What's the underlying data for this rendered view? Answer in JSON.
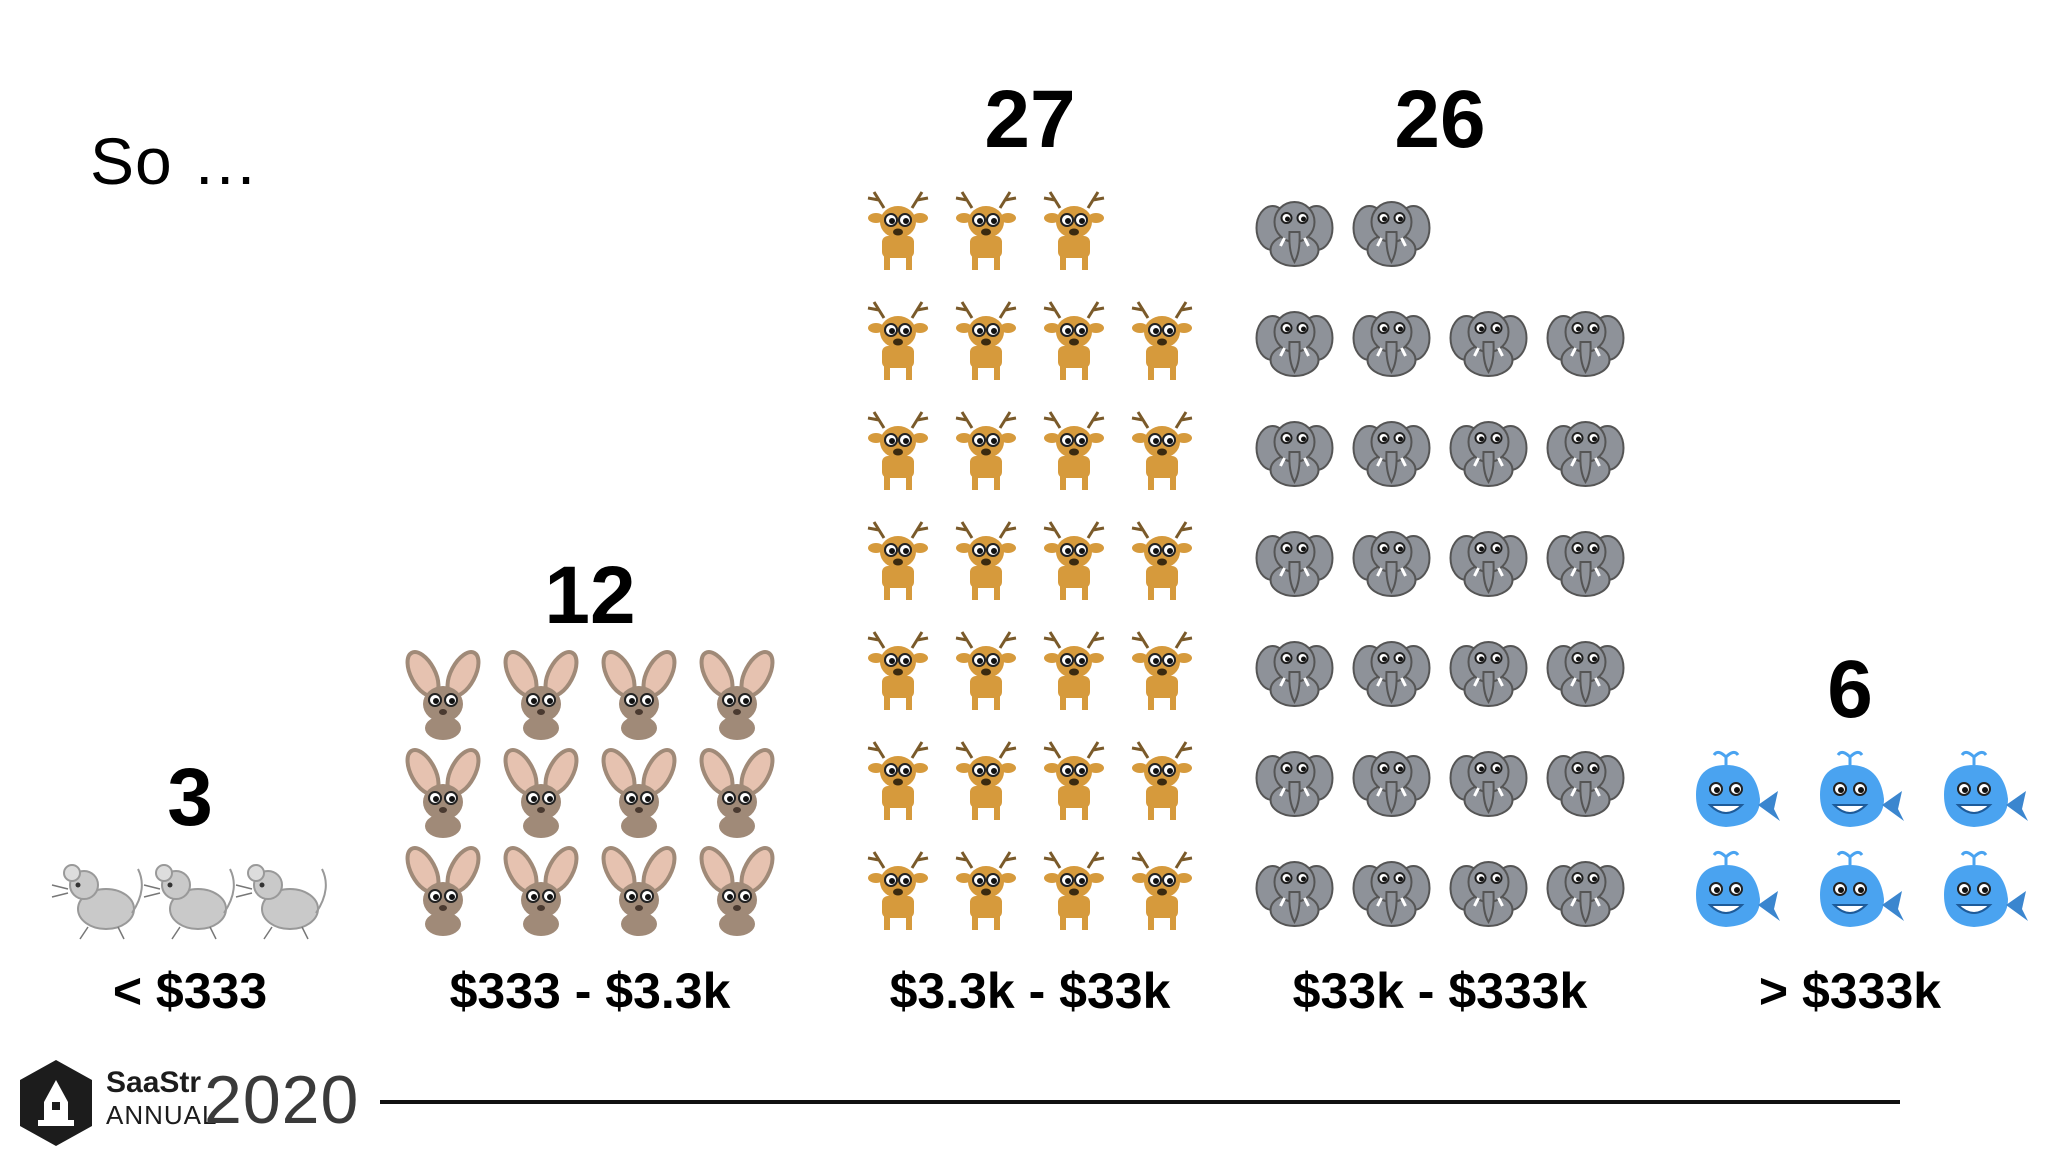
{
  "slide": {
    "title": "So …"
  },
  "chart_data": {
    "type": "bar",
    "title": "",
    "xlabel": "",
    "ylabel": "",
    "categories": [
      "< $333",
      "$333 - $3.3k",
      "$3.3k - $33k",
      "$33k - $333k",
      "> $333k"
    ],
    "values": [
      3,
      12,
      27,
      26,
      6
    ],
    "count_labels": [
      "3",
      "12",
      "27",
      "26",
      "6"
    ],
    "icons": [
      "mouse-icon",
      "rabbit-icon",
      "deer-icon",
      "elephant-icon",
      "whale-icon"
    ],
    "colors": [
      "#c9c9c9",
      "#a08a78",
      "#d69a3c",
      "#8e9299",
      "#4aa3f0"
    ]
  },
  "footer": {
    "logo_brand": "SaaStr",
    "logo_sub": "ANNUAL",
    "logo_year": "2020"
  }
}
